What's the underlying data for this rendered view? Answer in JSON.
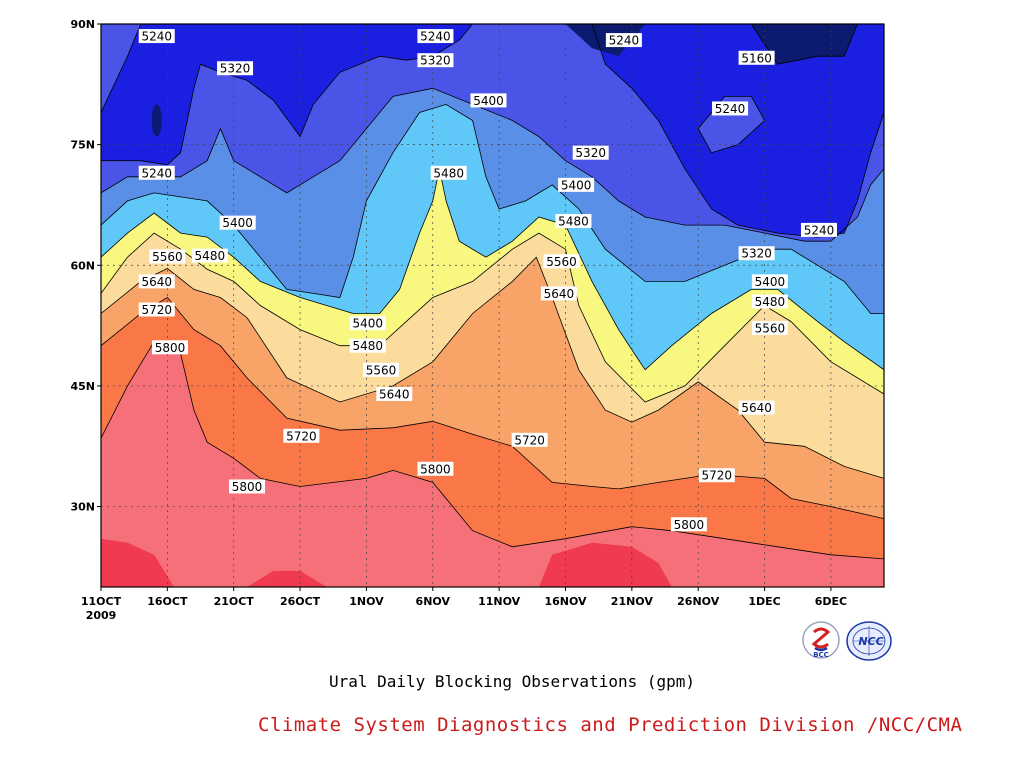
{
  "chart_data": {
    "type": "contour-filled",
    "title": "Ural Daily Blocking Observations (gpm)",
    "credit": "Climate System Diagnostics and Prediction Division /NCC/CMA",
    "x_axis": {
      "ticks": [
        "11OCT",
        "16OCT",
        "21OCT",
        "26OCT",
        "1NOV",
        "6NOV",
        "11NOV",
        "16NOV",
        "21NOV",
        "26NOV",
        "1DEC",
        "6DEC"
      ],
      "year_label": "2009",
      "range_days": [
        0,
        59
      ]
    },
    "y_axis": {
      "ticks": [
        "30N",
        "45N",
        "60N",
        "75N",
        "90N"
      ],
      "tick_values": [
        30,
        45,
        60,
        75,
        90
      ],
      "range": [
        20,
        90
      ]
    },
    "levels": [
      5160,
      5240,
      5320,
      5400,
      5480,
      5560,
      5640,
      5720,
      5800
    ],
    "colors": {
      "lt5160": "#0c1a70",
      "5160_5240": "#1a1fe0",
      "5240_5320": "#4a55e8",
      "5320_5400": "#5a8fe8",
      "5400_5480": "#5fc8f8",
      "5480_5560": "#f8f880",
      "5560_5640": "#fbdc9c",
      "5640_5720": "#f8a468",
      "5720_5800": "#fa7848",
      "5800_5880": "#f57078",
      "gt5880": "#f03a52"
    },
    "contour_lines": [
      {
        "level": 5800,
        "points": [
          [
            0,
            38.5
          ],
          [
            2,
            45
          ],
          [
            4,
            50.5
          ],
          [
            6,
            49
          ],
          [
            7,
            42
          ],
          [
            8,
            38
          ],
          [
            10,
            36
          ],
          [
            12,
            33.5
          ],
          [
            15,
            32.5
          ],
          [
            20,
            33.5
          ],
          [
            22,
            34.5
          ],
          [
            25,
            33
          ],
          [
            28,
            27
          ],
          [
            31,
            25
          ],
          [
            35,
            26
          ],
          [
            40,
            27.5
          ],
          [
            43,
            27
          ],
          [
            47,
            26
          ],
          [
            51,
            25
          ],
          [
            55,
            24
          ],
          [
            59,
            23.5
          ]
        ]
      },
      {
        "level": 5720,
        "points": [
          [
            0,
            50
          ],
          [
            3,
            54
          ],
          [
            5,
            56
          ],
          [
            7,
            52
          ],
          [
            9,
            50
          ],
          [
            11,
            46
          ],
          [
            14,
            41
          ],
          [
            18,
            39.5
          ],
          [
            22,
            39.8
          ],
          [
            25,
            40.6
          ],
          [
            28,
            39
          ],
          [
            31,
            37.5
          ],
          [
            34,
            33
          ],
          [
            37,
            32.5
          ],
          [
            39,
            32.2
          ],
          [
            42,
            33
          ],
          [
            46,
            34
          ],
          [
            50,
            33.5
          ],
          [
            52,
            31
          ],
          [
            55,
            30
          ],
          [
            59,
            28.5
          ]
        ]
      },
      {
        "level": 5640,
        "points": [
          [
            0,
            54
          ],
          [
            3,
            58
          ],
          [
            5,
            59.6
          ],
          [
            7,
            57
          ],
          [
            9,
            56
          ],
          [
            11,
            53.5
          ],
          [
            14,
            46
          ],
          [
            18,
            43
          ],
          [
            22,
            45
          ],
          [
            25,
            48
          ],
          [
            28,
            54
          ],
          [
            31,
            58
          ],
          [
            32.8,
            61
          ],
          [
            34,
            56
          ],
          [
            36,
            47
          ],
          [
            38,
            42
          ],
          [
            40,
            40.5
          ],
          [
            42,
            42
          ],
          [
            45,
            45.5
          ],
          [
            48,
            42
          ],
          [
            50,
            38
          ],
          [
            53,
            37.5
          ],
          [
            56,
            35
          ],
          [
            59,
            33.5
          ]
        ]
      },
      {
        "level": 5560,
        "points": [
          [
            0,
            56.5
          ],
          [
            2,
            61
          ],
          [
            4,
            64
          ],
          [
            6,
            62
          ],
          [
            8,
            59.5
          ],
          [
            10,
            58
          ],
          [
            12,
            55
          ],
          [
            15,
            52
          ],
          [
            18,
            50
          ],
          [
            21,
            50
          ],
          [
            23,
            53
          ],
          [
            25,
            56
          ],
          [
            28,
            58
          ],
          [
            31,
            62
          ],
          [
            33,
            64
          ],
          [
            35,
            62
          ],
          [
            36,
            55
          ],
          [
            38,
            48
          ],
          [
            41,
            43
          ],
          [
            44,
            45
          ],
          [
            47,
            50
          ],
          [
            50,
            55
          ],
          [
            52,
            53
          ],
          [
            55,
            48
          ],
          [
            57,
            46
          ],
          [
            59,
            44
          ]
        ]
      },
      {
        "level": 5480,
        "points": [
          [
            0,
            61
          ],
          [
            2,
            64
          ],
          [
            4,
            66.5
          ],
          [
            6,
            64
          ],
          [
            8,
            63.5
          ],
          [
            10,
            61
          ],
          [
            12,
            58
          ],
          [
            15,
            56
          ],
          [
            17,
            55
          ],
          [
            19,
            54
          ],
          [
            21,
            54
          ],
          [
            22.5,
            57
          ],
          [
            24,
            64
          ],
          [
            25,
            68
          ],
          [
            25.5,
            72
          ],
          [
            26,
            68
          ],
          [
            27,
            63
          ],
          [
            29,
            61
          ],
          [
            31,
            63
          ],
          [
            33,
            66
          ],
          [
            35,
            65
          ],
          [
            37,
            58
          ],
          [
            39,
            52
          ],
          [
            41,
            47
          ],
          [
            43,
            50
          ],
          [
            46,
            54
          ],
          [
            49,
            57
          ],
          [
            51,
            57
          ],
          [
            54,
            53
          ],
          [
            56,
            50.5
          ],
          [
            59,
            47
          ]
        ]
      },
      {
        "level": 5400,
        "points": [
          [
            0,
            65
          ],
          [
            2,
            68
          ],
          [
            4,
            69
          ],
          [
            6,
            68.5
          ],
          [
            8,
            68
          ],
          [
            10,
            65
          ],
          [
            12,
            61
          ],
          [
            14,
            57
          ],
          [
            16,
            56.5
          ],
          [
            18,
            56
          ],
          [
            19,
            61
          ],
          [
            20,
            68
          ],
          [
            22,
            74
          ],
          [
            24,
            79
          ],
          [
            26,
            80
          ],
          [
            28,
            78
          ],
          [
            29,
            71
          ],
          [
            30,
            67
          ],
          [
            32,
            68
          ],
          [
            34,
            70
          ],
          [
            36,
            67
          ],
          [
            38,
            62
          ],
          [
            41,
            58
          ],
          [
            44,
            58
          ],
          [
            47,
            60
          ],
          [
            50,
            62
          ],
          [
            52,
            62
          ],
          [
            54,
            60
          ],
          [
            56,
            58
          ],
          [
            58,
            54
          ],
          [
            59,
            54
          ]
        ]
      },
      {
        "level": 5320,
        "points": [
          [
            0,
            69
          ],
          [
            2,
            71
          ],
          [
            4,
            71
          ],
          [
            6,
            71
          ],
          [
            8,
            73
          ],
          [
            9,
            77
          ],
          [
            10,
            73
          ],
          [
            12,
            71
          ],
          [
            14,
            69
          ],
          [
            16,
            71
          ],
          [
            18,
            73
          ],
          [
            20,
            77
          ],
          [
            22,
            81
          ],
          [
            25,
            82
          ],
          [
            28,
            80
          ],
          [
            31,
            78
          ],
          [
            33,
            76
          ],
          [
            35,
            73
          ],
          [
            37,
            71
          ],
          [
            39,
            68
          ],
          [
            41,
            66
          ],
          [
            44,
            65
          ],
          [
            47,
            65
          ],
          [
            50,
            64
          ],
          [
            53,
            63
          ],
          [
            55,
            63
          ],
          [
            57,
            66
          ],
          [
            58,
            70
          ],
          [
            59,
            72
          ]
        ]
      },
      {
        "level": 5240,
        "points": [
          [
            0,
            79
          ],
          [
            2,
            86
          ],
          [
            3,
            90
          ]
        ]
      },
      {
        "level": 5240,
        "points": [
          [
            0,
            73
          ],
          [
            3,
            73
          ],
          [
            5,
            72.5
          ],
          [
            6,
            74
          ],
          [
            7,
            82
          ],
          [
            7.5,
            85
          ],
          [
            9,
            84
          ],
          [
            11,
            83
          ],
          [
            13,
            80.5
          ],
          [
            15,
            76
          ],
          [
            16,
            80
          ],
          [
            18,
            84
          ],
          [
            21,
            86
          ],
          [
            23,
            85.5
          ],
          [
            25,
            86
          ],
          [
            27,
            88
          ],
          [
            28,
            90
          ]
        ]
      },
      {
        "level": 5240,
        "points": [
          [
            37,
            90
          ],
          [
            38,
            85
          ],
          [
            40,
            82
          ],
          [
            42,
            78
          ],
          [
            44,
            72
          ],
          [
            46,
            67
          ],
          [
            48,
            65
          ],
          [
            51,
            64
          ],
          [
            54,
            63.5
          ],
          [
            56,
            64
          ],
          [
            57,
            68
          ],
          [
            58,
            74
          ],
          [
            59,
            79
          ]
        ]
      },
      {
        "level": 5240,
        "points": [
          [
            45,
            77
          ],
          [
            46,
            74
          ],
          [
            48,
            75
          ],
          [
            50,
            78
          ],
          [
            49,
            81
          ],
          [
            47,
            81
          ],
          [
            45,
            77
          ]
        ]
      },
      {
        "level": 5160,
        "points": [
          [
            49,
            90
          ],
          [
            51,
            85
          ],
          [
            54,
            86
          ],
          [
            56,
            86
          ],
          [
            57,
            90
          ]
        ]
      }
    ],
    "labels": [
      {
        "text": "5240",
        "day": 4.2,
        "lat": 88.5
      },
      {
        "text": "5320",
        "day": 10.1,
        "lat": 84.5
      },
      {
        "text": "5240",
        "day": 25.2,
        "lat": 88.5
      },
      {
        "text": "5320",
        "day": 25.2,
        "lat": 85.5
      },
      {
        "text": "5240",
        "day": 39.4,
        "lat": 88.0
      },
      {
        "text": "5160",
        "day": 49.4,
        "lat": 85.8
      },
      {
        "text": "5400",
        "day": 29.2,
        "lat": 80.5
      },
      {
        "text": "5240",
        "day": 47.4,
        "lat": 79.5
      },
      {
        "text": "5240",
        "day": 4.2,
        "lat": 71.5
      },
      {
        "text": "5320",
        "day": 36.9,
        "lat": 74.0
      },
      {
        "text": "5480",
        "day": 26.2,
        "lat": 71.5
      },
      {
        "text": "5400",
        "day": 35.8,
        "lat": 70.0
      },
      {
        "text": "5400",
        "day": 10.3,
        "lat": 65.3
      },
      {
        "text": "5480",
        "day": 35.6,
        "lat": 65.5
      },
      {
        "text": "5240",
        "day": 54.1,
        "lat": 64.4
      },
      {
        "text": "5480",
        "day": 8.2,
        "lat": 61.2
      },
      {
        "text": "5560",
        "day": 5.0,
        "lat": 61.1
      },
      {
        "text": "5320",
        "day": 49.4,
        "lat": 61.5
      },
      {
        "text": "5560",
        "day": 34.7,
        "lat": 60.5
      },
      {
        "text": "5400",
        "day": 50.4,
        "lat": 58.0
      },
      {
        "text": "5640",
        "day": 4.2,
        "lat": 58.0
      },
      {
        "text": "5640",
        "day": 34.5,
        "lat": 56.5
      },
      {
        "text": "5480",
        "day": 50.4,
        "lat": 55.5
      },
      {
        "text": "5720",
        "day": 4.2,
        "lat": 54.5
      },
      {
        "text": "5400",
        "day": 20.1,
        "lat": 52.8
      },
      {
        "text": "5480",
        "day": 20.1,
        "lat": 50.0
      },
      {
        "text": "5560",
        "day": 50.4,
        "lat": 52.2
      },
      {
        "text": "5800",
        "day": 5.2,
        "lat": 49.8
      },
      {
        "text": "5560",
        "day": 21.1,
        "lat": 47.0
      },
      {
        "text": "5640",
        "day": 22.1,
        "lat": 44.0
      },
      {
        "text": "5640",
        "day": 49.4,
        "lat": 42.3
      },
      {
        "text": "5720",
        "day": 15.1,
        "lat": 38.8
      },
      {
        "text": "5720",
        "day": 32.3,
        "lat": 38.3
      },
      {
        "text": "5800",
        "day": 25.2,
        "lat": 34.7
      },
      {
        "text": "5720",
        "day": 46.4,
        "lat": 33.9
      },
      {
        "text": "5800",
        "day": 11.0,
        "lat": 32.5
      },
      {
        "text": "5800",
        "day": 44.3,
        "lat": 27.8
      }
    ]
  }
}
